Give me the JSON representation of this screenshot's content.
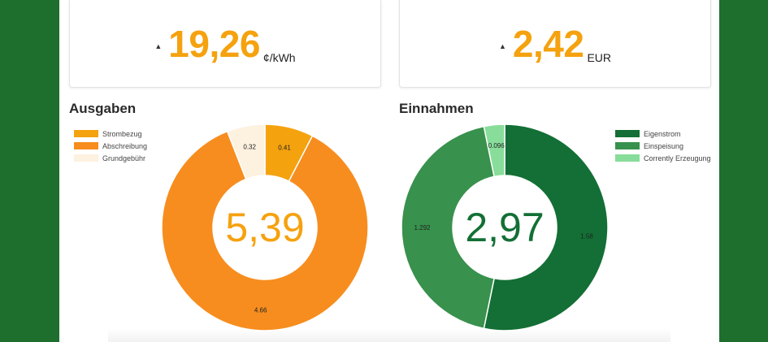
{
  "cards": [
    {
      "value": "19,26",
      "unit": "¢/kWh",
      "arrow": "▲"
    },
    {
      "value": "2,42",
      "unit": "EUR",
      "arrow": "▲"
    }
  ],
  "chart_data": [
    {
      "type": "pie",
      "title": "Ausgaben",
      "center_label": "5,39",
      "center_color": "#f5a20f",
      "series": [
        {
          "name": "Strombezug",
          "value": 0.41,
          "label": "0.41",
          "color": "#f5a20f"
        },
        {
          "name": "Abschreibung",
          "value": 4.66,
          "label": "4.66",
          "color": "#f78d1e"
        },
        {
          "name": "Grundgebühr",
          "value": 0.32,
          "label": "0.32",
          "color": "#fdf1e0"
        }
      ]
    },
    {
      "type": "pie",
      "title": "Einnahmen",
      "center_label": "2,97",
      "center_color": "#136f35",
      "series": [
        {
          "name": "Eigenstrom",
          "value": 1.58,
          "label": "1.58",
          "color": "#136f35"
        },
        {
          "name": "Einspeisung",
          "value": 1.292,
          "label": "1.292",
          "color": "#38914c"
        },
        {
          "name": "Corrently Erzeugung",
          "value": 0.096,
          "label": "0.096",
          "color": "#87dd99"
        }
      ]
    }
  ]
}
